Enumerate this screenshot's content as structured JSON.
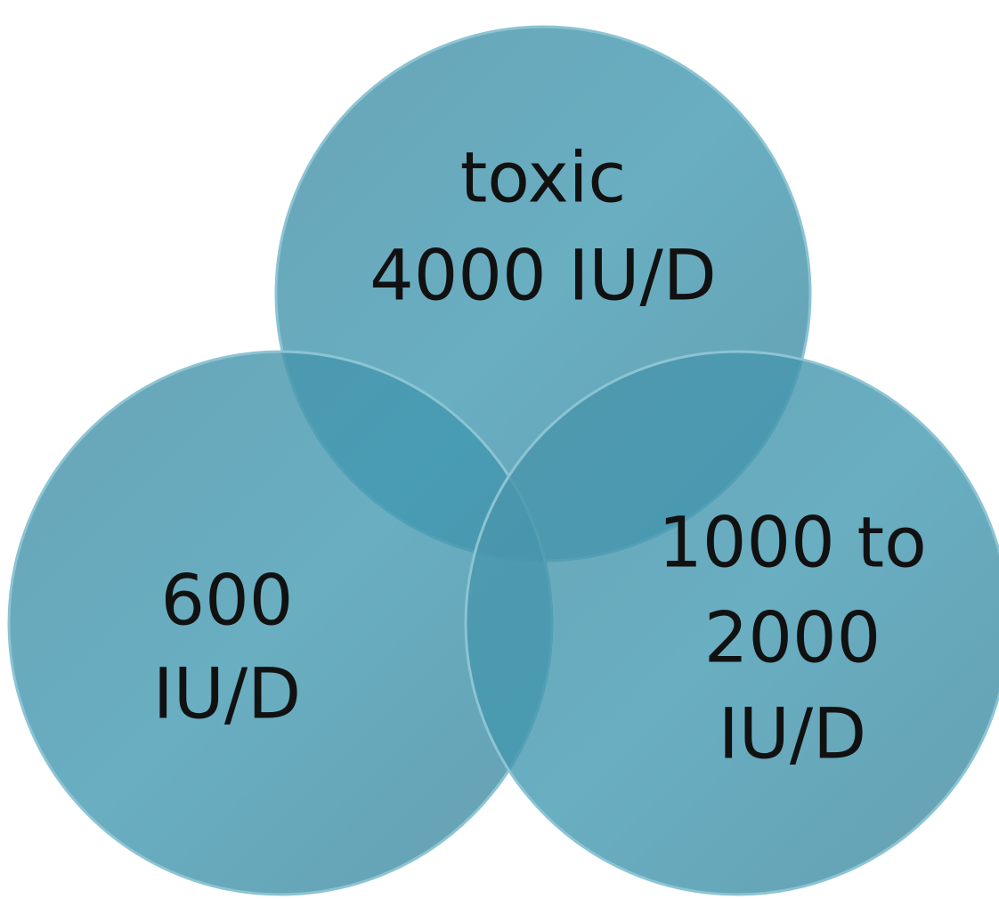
{
  "nodes": [
    {
      "lines": [
        "toxic",
        "4000 IU/D"
      ]
    },
    {
      "lines": [
        "600",
        "IU/D"
      ]
    },
    {
      "lines": [
        "1000 to",
        "2000",
        "IU/D"
      ]
    }
  ]
}
